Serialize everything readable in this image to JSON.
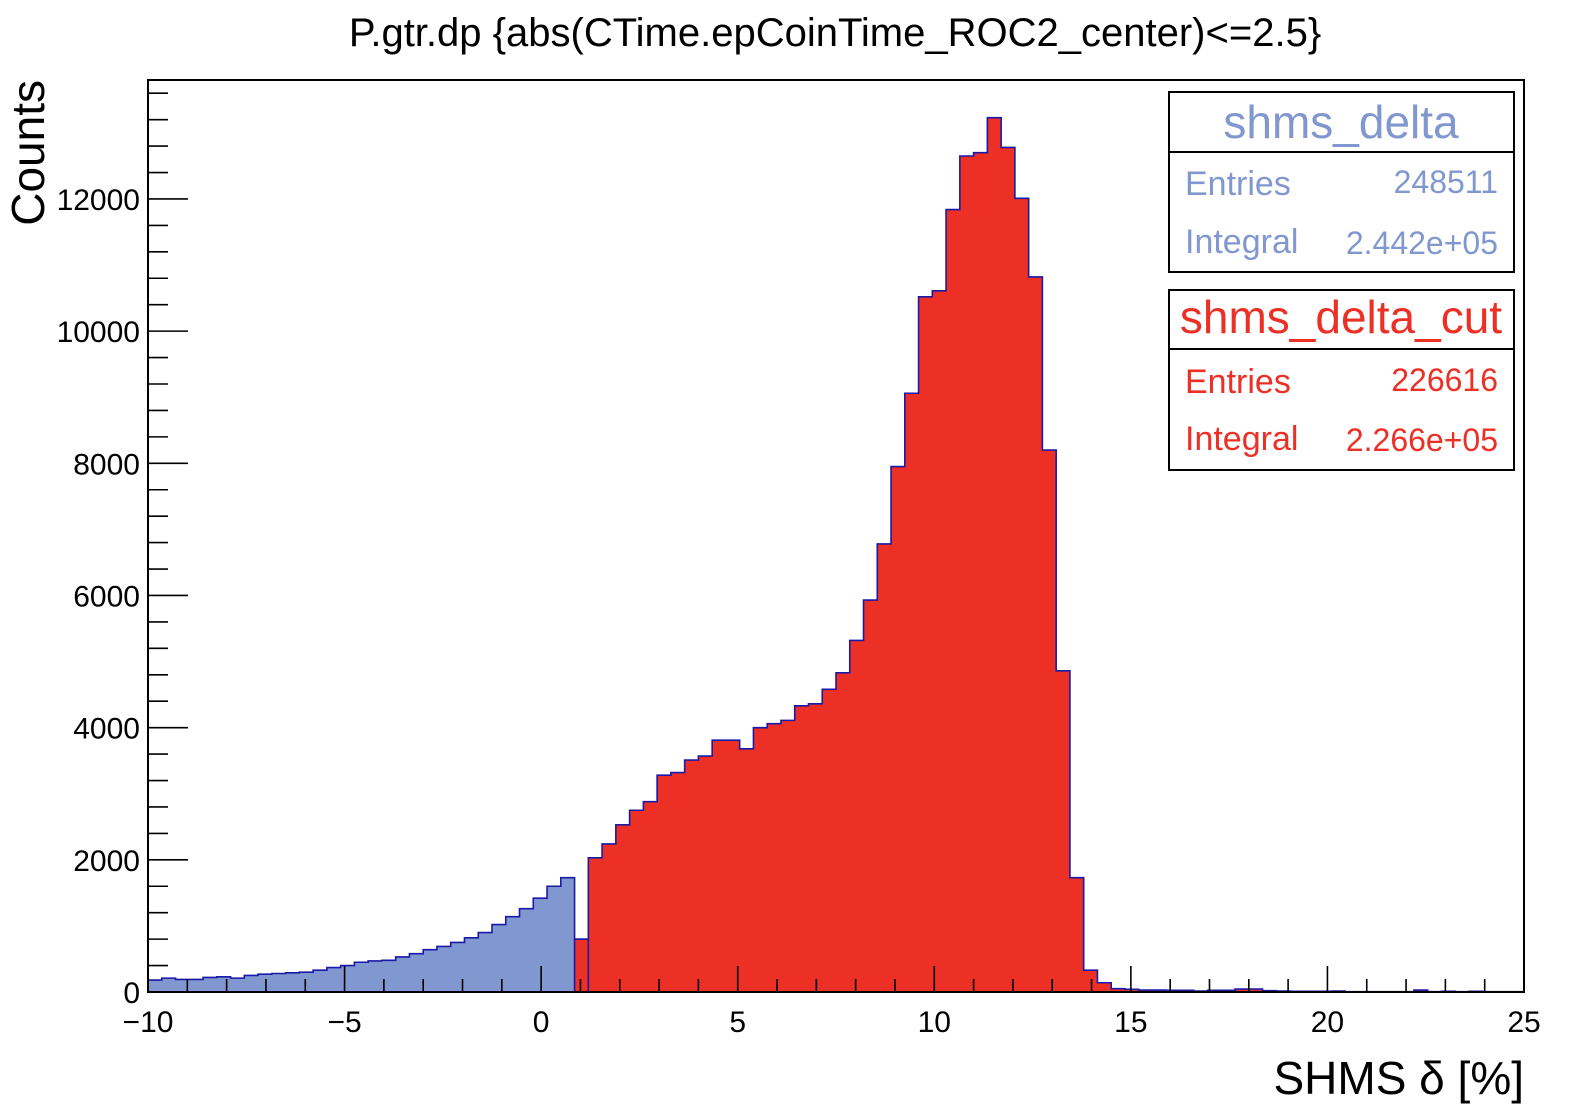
{
  "chart_data": {
    "type": "bar",
    "title": "P.gtr.dp {abs(CTime.epCoinTime_ROC2_center)<=2.5}",
    "xlabel": "SHMS δ [%]",
    "ylabel": "Counts",
    "xlim": [
      -10,
      25
    ],
    "ylim": [
      0,
      13800
    ],
    "x_ticks": [
      "−10",
      "−5",
      "0",
      "5",
      "10",
      "15",
      "20",
      "25"
    ],
    "x_tick_values": [
      -10,
      -5,
      0,
      5,
      10,
      15,
      20,
      25
    ],
    "y_ticks": [
      "0",
      "2000",
      "4000",
      "6000",
      "8000",
      "10000",
      "12000"
    ],
    "y_tick_values": [
      0,
      2000,
      4000,
      6000,
      8000,
      10000,
      12000
    ],
    "bin_start": -10,
    "bin_width": 0.35,
    "series": [
      {
        "name": "shms_delta",
        "color": "#8197cf",
        "values": [
          180,
          210,
          190,
          190,
          220,
          230,
          210,
          250,
          270,
          280,
          290,
          300,
          330,
          370,
          400,
          450,
          470,
          480,
          530,
          580,
          640,
          690,
          750,
          820,
          900,
          1020,
          1140,
          1260,
          1420,
          1600,
          1730,
          800
        ]
      },
      {
        "name": "shms_delta_cut",
        "color": "#ec3025",
        "start_bin": 31,
        "values": [
          800,
          2030,
          2240,
          2530,
          2750,
          2880,
          3280,
          3320,
          3510,
          3570,
          3810,
          3810,
          3680,
          4000,
          4060,
          4110,
          4330,
          4360,
          4580,
          4830,
          5320,
          5930,
          6780,
          7950,
          9060,
          10520,
          10610,
          11840,
          12650,
          12700,
          13230,
          12780,
          12010,
          10820,
          8200,
          4860,
          1730,
          330,
          140,
          50,
          40,
          30,
          30,
          25,
          25,
          15,
          25,
          25,
          45,
          45,
          20,
          15,
          10,
          10,
          10,
          15,
          5,
          5,
          5,
          5,
          5,
          30,
          5,
          10,
          5,
          10,
          5,
          5,
          5,
          5
        ]
      }
    ],
    "outline_color": "#1a1aa8",
    "legend_position": "top-right",
    "grid": false
  },
  "stats": [
    {
      "name": "shms_delta",
      "color": "#8197cf",
      "entries_label": "Entries",
      "entries": "248511",
      "integral_label": "Integral",
      "integral": "2.442e+05"
    },
    {
      "name": "shms_delta_cut",
      "color": "#ec3025",
      "entries_label": "Entries",
      "entries": "226616",
      "integral_label": "Integral",
      "integral": "2.266e+05"
    }
  ]
}
